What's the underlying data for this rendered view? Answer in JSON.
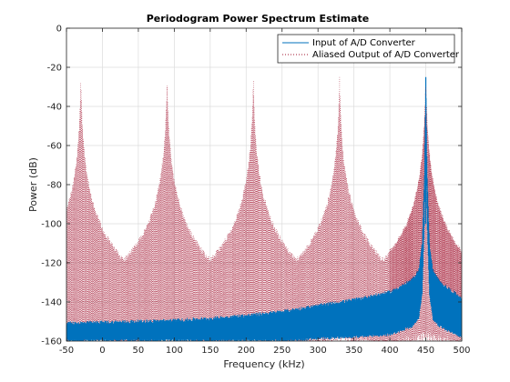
{
  "chart_data": {
    "type": "line",
    "title": "Periodogram Power Spectrum Estimate",
    "xlabel": "Frequency (kHz)",
    "ylabel": "Power (dB)",
    "xlim": [
      -50,
      500
    ],
    "ylim": [
      -160,
      0
    ],
    "xticks": [
      -50,
      0,
      50,
      100,
      150,
      200,
      250,
      300,
      350,
      400,
      450,
      500
    ],
    "yticks": [
      0,
      -20,
      -40,
      -60,
      -80,
      -100,
      -120,
      -140,
      -160
    ],
    "grid": true,
    "legend_position": "top-right",
    "series": [
      {
        "name": "Input of A/D Converter",
        "color": "#0072BD",
        "style": "solid",
        "peak_khz": 450,
        "peak_db": -25,
        "x": [
          -50,
          0,
          50,
          100,
          150,
          200,
          250,
          300,
          350,
          400,
          430,
          440,
          445,
          448,
          450,
          452,
          455,
          460,
          470,
          500
        ],
        "upper": [
          -151,
          -150.5,
          -150,
          -149.5,
          -148.5,
          -147,
          -145,
          -142,
          -139,
          -135,
          -129,
          -124,
          -110,
          -75,
          -25,
          -75,
          -110,
          -124,
          -130,
          -138
        ],
        "lower": [
          -159,
          -159,
          -159,
          -159,
          -159,
          -159,
          -159,
          -158,
          -157,
          -156,
          -152,
          -148,
          -135,
          -100,
          -60,
          -100,
          -135,
          -148,
          -152,
          -157
        ]
      },
      {
        "name": "Aliased Output of A/D Converter",
        "color": "#A2142F",
        "style": "dotted",
        "peaks_khz": [
          -30,
          90,
          210,
          330,
          450
        ],
        "peak_db": -25,
        "floor_db": -135,
        "min_db": -160
      }
    ]
  }
}
